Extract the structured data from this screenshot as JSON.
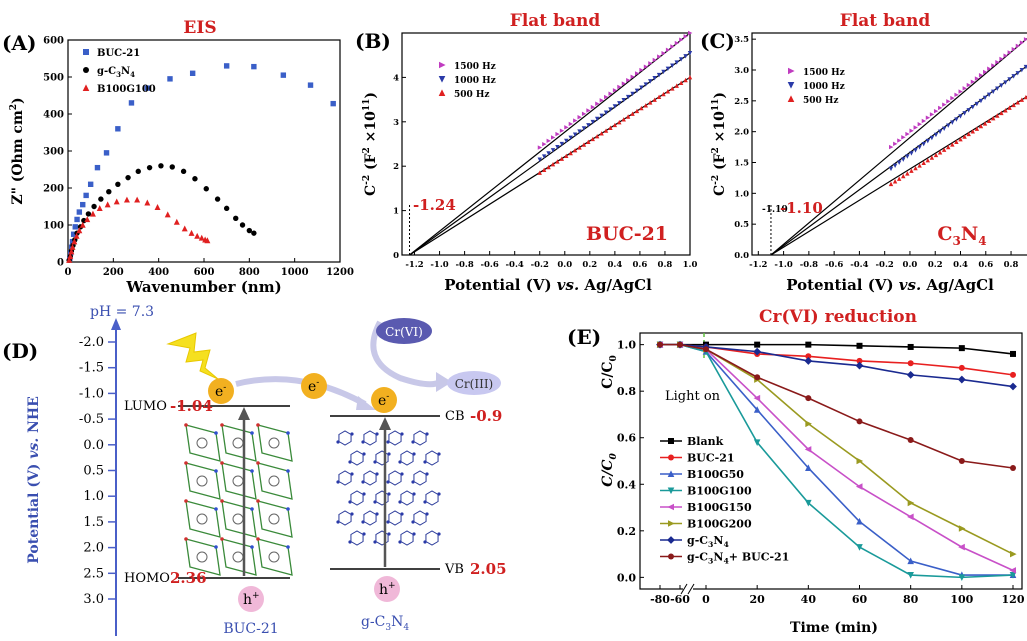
{
  "chart_data": [
    {
      "panel": "(A)",
      "type": "scatter",
      "title": "EIS",
      "xlabel": "Wavenumber (nm)",
      "ylabel": "Z\" (Ohm cm",
      "ylabel_sup": "2",
      "ylabel_end": ")",
      "xlim": [
        0,
        1200
      ],
      "ylim": [
        0,
        600
      ],
      "xticks": [
        "0",
        "200",
        "400",
        "600",
        "800",
        "1000",
        "1200"
      ],
      "yticks": [
        "0",
        "100",
        "200",
        "300",
        "400",
        "500",
        "600"
      ],
      "legend_position": "top-left",
      "series": [
        {
          "name": "BUC-21",
          "name_parts": [
            "BUC-21"
          ],
          "marker": "square",
          "color": "#3a5fc8",
          "x": [
            8,
            12,
            16,
            20,
            25,
            32,
            40,
            50,
            65,
            80,
            100,
            130,
            170,
            220,
            280,
            350,
            450,
            550,
            700,
            820,
            950,
            1070,
            1170
          ],
          "y": [
            10,
            25,
            40,
            55,
            75,
            95,
            115,
            135,
            155,
            180,
            210,
            255,
            295,
            360,
            430,
            470,
            495,
            510,
            530,
            528,
            505,
            478,
            428
          ]
        },
        {
          "name": "g-C3N4",
          "name_parts": [
            "g-C",
            "3",
            "N",
            "4"
          ],
          "marker": "circle",
          "color": "#000000",
          "x": [
            5,
            10,
            15,
            22,
            30,
            40,
            55,
            70,
            90,
            115,
            145,
            180,
            220,
            265,
            310,
            360,
            410,
            460,
            510,
            560,
            610,
            660,
            700,
            740,
            770,
            800,
            820
          ],
          "y": [
            5,
            15,
            30,
            45,
            60,
            78,
            95,
            112,
            130,
            150,
            170,
            190,
            210,
            228,
            245,
            255,
            260,
            257,
            245,
            225,
            198,
            170,
            145,
            118,
            100,
            85,
            78
          ]
        },
        {
          "name": "B100G100",
          "name_parts": [
            "B100G100"
          ],
          "marker": "triangle",
          "color": "#e02020",
          "x": [
            5,
            10,
            15,
            20,
            28,
            38,
            50,
            65,
            85,
            110,
            140,
            175,
            215,
            260,
            305,
            350,
            395,
            440,
            480,
            515,
            545,
            570,
            590,
            605,
            615
          ],
          "y": [
            5,
            15,
            28,
            40,
            55,
            70,
            85,
            100,
            115,
            130,
            145,
            155,
            163,
            168,
            168,
            160,
            148,
            128,
            108,
            90,
            78,
            70,
            65,
            60,
            58
          ]
        }
      ]
    },
    {
      "panel": "(B)",
      "type": "line",
      "title": "Flat band",
      "label": "BUC-21",
      "annotation": "-1.24",
      "xlabel_main": "Potential (V) ",
      "xlabel_vs": "vs.",
      "xlabel_ref": " Ag/AgCl",
      "ylabel": "C",
      "ylabel_sup": "-2",
      "ylabel_end": " (F",
      "ylabel_sup2": "2",
      "ylabel_end2": " ×10",
      "ylabel_sup3": "11",
      "ylabel_end3": ")",
      "xlim": [
        -1.3,
        1.0
      ],
      "ylim": [
        0,
        5
      ],
      "xticks": [
        "-1.2",
        "-1.0",
        "-0.8",
        "-0.6",
        "-0.4",
        "-0.2",
        "0.0",
        "0.2",
        "0.4",
        "0.6",
        "0.8",
        "1.0"
      ],
      "yticks": [
        "0",
        "1",
        "2",
        "3",
        "4"
      ],
      "intercept": -1.24,
      "legend_position": "top-left",
      "series": [
        {
          "name": "1500 Hz",
          "color": "#c03cc0",
          "marker": "triangle-right",
          "x_range": [
            -0.2,
            1.0
          ],
          "y_at_ends": [
            2.42,
            5.0
          ]
        },
        {
          "name": "1000 Hz",
          "color": "#2a3aa8",
          "marker": "triangle-down",
          "x_range": [
            -0.2,
            1.0
          ],
          "y_at_ends": [
            2.15,
            4.55
          ]
        },
        {
          "name": "500 Hz",
          "color": "#e02020",
          "marker": "triangle",
          "x_range": [
            -0.2,
            1.0
          ],
          "y_at_ends": [
            1.85,
            4.0
          ]
        }
      ]
    },
    {
      "panel": "(C)",
      "type": "line",
      "title": "Flat band",
      "label_parts": [
        "C",
        "3",
        "N",
        "4"
      ],
      "annotation": "-1.10",
      "annotation_small": "-1.10",
      "xlabel_main": "Potential (V) ",
      "xlabel_vs": "vs.",
      "xlabel_ref": " Ag/AgCl",
      "ylabel": "C",
      "ylabel_sup": "-2",
      "ylabel_end": " (F",
      "ylabel_sup2": "2",
      "ylabel_end2": " ×10",
      "ylabel_sup3": "11",
      "ylabel_end3": ")",
      "xlim": [
        -1.25,
        0.95
      ],
      "ylim": [
        0,
        3.6
      ],
      "xticks": [
        "-1.2",
        "-1.0",
        "-0.8",
        "-0.6",
        "-0.4",
        "-0.2",
        "0.0",
        "0.2",
        "0.4",
        "0.6",
        "0.8"
      ],
      "yticks": [
        "0.0",
        "0.5",
        "1.0",
        "1.5",
        "2.0",
        "2.5",
        "3.0",
        "3.5"
      ],
      "intercept": -1.1,
      "legend_position": "top-left",
      "series": [
        {
          "name": "1500 Hz",
          "color": "#c03cc0",
          "marker": "triangle-right",
          "x_range": [
            -0.15,
            0.95
          ],
          "y_at_ends": [
            1.75,
            3.55
          ]
        },
        {
          "name": "1000 Hz",
          "color": "#2a3aa8",
          "marker": "triangle-down",
          "x_range": [
            -0.15,
            0.95
          ],
          "y_at_ends": [
            1.4,
            3.1
          ]
        },
        {
          "name": "500 Hz",
          "color": "#e02020",
          "marker": "triangle",
          "x_range": [
            -0.15,
            0.95
          ],
          "y_at_ends": [
            1.15,
            2.6
          ]
        }
      ]
    },
    {
      "panel": "(D)",
      "type": "diagram",
      "ph_label": "pH = 7.3",
      "ylabel_main": "Potential (V) ",
      "ylabel_vs": "vs.",
      "ylabel_ref": " NHE",
      "ylim": [
        -2.0,
        3.0
      ],
      "yticks": [
        "-2.0",
        "-1.5",
        "-1.0",
        "-0.5",
        "0.0",
        "0.5",
        "1.0",
        "1.5",
        "2.0",
        "2.5",
        "3.0"
      ],
      "lumo_label": "LUMO",
      "lumo_value": "-1.04",
      "homo_label": "HOMO",
      "homo_value": "2.36",
      "cb_label": "CB",
      "cb_value": "-0.9",
      "vb_label": "VB",
      "vb_value": "2.05",
      "electron": "e",
      "electron_sup": "-",
      "hole": "h",
      "hole_sup": "+",
      "crvi": "Cr(VI)",
      "criii": "Cr(III)",
      "left_material": "BUC-21",
      "right_material_parts": [
        "g-C",
        "3",
        "N",
        "4"
      ],
      "colors": {
        "axis": "#4a5fc8",
        "value": "#d02020",
        "electron": "#f2b020",
        "hole": "#f0b8d8",
        "bolt": "#f5e020",
        "crvi": "#5a5ab0",
        "criii": "#c8c8f0"
      }
    },
    {
      "panel": "(E)",
      "type": "line",
      "title": "Cr(VI) reduction",
      "annotation": "Light on",
      "xlabel": "Time (min)",
      "ylabel": "C/C",
      "ylabel_sub": "0",
      "ylabel_inner": "C/C",
      "ylabel_inner_sub": "0",
      "xticks": [
        "-80",
        "-60",
        "0",
        "20",
        "40",
        "60",
        "80",
        "100",
        "120"
      ],
      "x_positions": [
        -80,
        -60,
        0,
        20,
        40,
        60,
        80,
        100,
        120
      ],
      "ylim": [
        -0.05,
        1.05
      ],
      "yticks": [
        "0.0",
        "0.2",
        "0.4",
        "0.6",
        "0.8",
        "1.0"
      ],
      "legend_position": "bottom-left",
      "series": [
        {
          "name": "Blank",
          "name_parts": [
            "Blank"
          ],
          "color": "#000000",
          "marker": "square",
          "values": [
            1.0,
            1.0,
            1.0,
            1.0,
            1.0,
            0.995,
            0.99,
            0.985,
            0.96
          ]
        },
        {
          "name": "BUC-21",
          "name_parts": [
            "BUC-21"
          ],
          "color": "#e82020",
          "marker": "circle",
          "values": [
            1.0,
            1.0,
            0.99,
            0.96,
            0.95,
            0.93,
            0.92,
            0.9,
            0.87
          ]
        },
        {
          "name": "B100G50",
          "name_parts": [
            "B100G50"
          ],
          "color": "#3a5fc8",
          "marker": "triangle",
          "values": [
            1.0,
            1.0,
            0.97,
            0.72,
            0.47,
            0.24,
            0.07,
            0.01,
            0.01
          ]
        },
        {
          "name": "B100G100",
          "name_parts": [
            "B100G100"
          ],
          "color": "#1a9a9a",
          "marker": "triangle-down",
          "values": [
            1.0,
            1.0,
            0.97,
            0.58,
            0.32,
            0.13,
            0.01,
            0.0,
            0.01
          ]
        },
        {
          "name": "B100G150",
          "name_parts": [
            "B100G150"
          ],
          "color": "#c850c8",
          "marker": "triangle-left",
          "values": [
            1.0,
            1.0,
            0.98,
            0.77,
            0.55,
            0.39,
            0.26,
            0.13,
            0.03
          ]
        },
        {
          "name": "B100G200",
          "name_parts": [
            "B100G200"
          ],
          "color": "#9a9a20",
          "marker": "triangle-right",
          "values": [
            1.0,
            1.0,
            0.98,
            0.85,
            0.66,
            0.5,
            0.32,
            0.21,
            0.1
          ]
        },
        {
          "name": "g-C3N4",
          "name_parts": [
            "g-C",
            "3",
            "N",
            "4"
          ],
          "color": "#1a2a90",
          "marker": "diamond",
          "values": [
            1.0,
            1.0,
            0.99,
            0.97,
            0.93,
            0.91,
            0.87,
            0.85,
            0.82
          ]
        },
        {
          "name": "g-C3N4+ BUC-21",
          "name_parts": [
            "g-C",
            "3",
            "N",
            "4",
            "+ BUC-21"
          ],
          "color": "#8a1a1a",
          "marker": "circle",
          "values": [
            1.0,
            1.0,
            0.98,
            0.86,
            0.77,
            0.67,
            0.59,
            0.5,
            0.47
          ]
        }
      ]
    }
  ]
}
